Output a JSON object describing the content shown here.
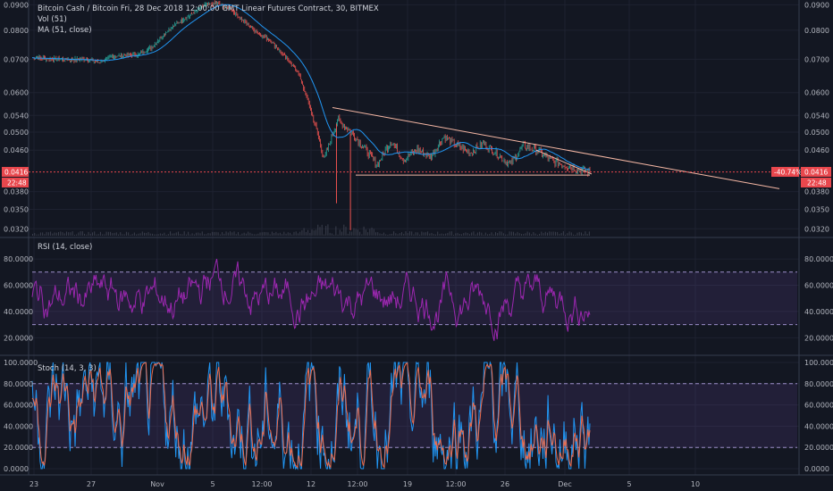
{
  "chart_data": [
    {
      "type": "candlestick",
      "title": "Bitcoin Cash / Bitcoin Fri, 28 Dec 2018 12:00:00 GMT Linear Futures Contract, 30, BITMEX",
      "legends": [
        "Vol (51)",
        "MA (51, close)"
      ],
      "y_ticks": [
        "0.0900",
        "0.0800",
        "0.0700",
        "0.0600",
        "0.0540",
        "0.0500",
        "0.0460",
        "0.0416",
        "0.0380",
        "0.0350",
        "0.0320"
      ],
      "price_label": "0.0416",
      "time_left_label": "22:48",
      "change_label": "-40.74%",
      "ylim": [
        0.031,
        0.092
      ],
      "close_series": [
        0.0705,
        0.0702,
        0.07,
        0.0698,
        0.07,
        0.069,
        0.0708,
        0.0712,
        0.0715,
        0.074,
        0.079,
        0.083,
        0.086,
        0.09,
        0.0905,
        0.088,
        0.083,
        0.079,
        0.076,
        0.071,
        0.066,
        0.055,
        0.044,
        0.053,
        0.05,
        0.0465,
        0.043,
        0.048,
        0.044,
        0.0462,
        0.0445,
        0.049,
        0.047,
        0.0455,
        0.0475,
        0.0452,
        0.043,
        0.047,
        0.046,
        0.044,
        0.043,
        0.0422,
        0.0416
      ],
      "trendlines": [
        {
          "from": [
            0.056,
            0
          ],
          "to": [
            0.0385,
            1
          ]
        },
        {
          "from": [
            0.041,
            0
          ],
          "to": [
            0.041,
            1
          ]
        },
        {
          "from": [
            0.046,
            0
          ],
          "to": [
            0.0412,
            1
          ]
        }
      ]
    },
    {
      "type": "line",
      "title": "RSI (14, close)",
      "y_ticks": [
        "80.0000",
        "60.0000",
        "40.0000",
        "20.0000"
      ],
      "ylim": [
        8,
        95
      ],
      "band": [
        30,
        70
      ]
    },
    {
      "type": "line",
      "title": "Stoch (14, 3, 3)",
      "y_ticks": [
        "100.0000",
        "80.0000",
        "60.0000",
        "40.0000",
        "20.0000",
        "0.0000"
      ],
      "ylim": [
        -5,
        105
      ],
      "band": [
        20,
        80
      ]
    }
  ],
  "x_ticks": [
    "23",
    "27",
    "Nov",
    "5",
    "12:00",
    "12",
    "12:00",
    "19",
    "12:00",
    "26",
    "Dec",
    "5",
    "10"
  ],
  "colors": {
    "background": "#131722",
    "up": "#26a69a",
    "down": "#ef5350",
    "ma": "#2196f3",
    "rsi": "#9c27b0",
    "stoch_k": "#2196f3",
    "stoch_d": "#ef6c4c",
    "band": "#7e57c2",
    "trendline": "#f5b7a4",
    "price_tag": "#e8474d"
  }
}
